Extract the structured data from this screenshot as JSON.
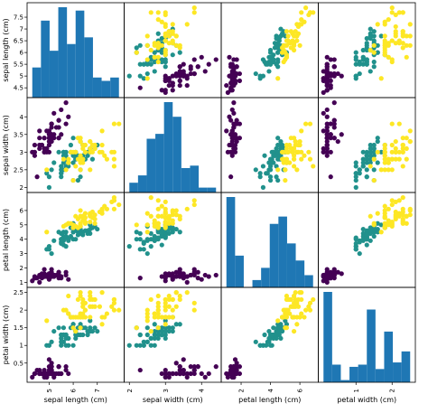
{
  "chart_data": {
    "type": "scatter-matrix",
    "title": "",
    "variables": [
      "sepal length (cm)",
      "sepal width (cm)",
      "petal length (cm)",
      "petal width (cm)"
    ],
    "ranges": [
      [
        4.3,
        7.9
      ],
      [
        2.0,
        4.4
      ],
      [
        1.0,
        6.9
      ],
      [
        0.1,
        2.5
      ]
    ],
    "x_ticks": [
      [
        5,
        6,
        7
      ],
      [
        2,
        3,
        4
      ],
      [
        2,
        4,
        6
      ],
      [
        1,
        2
      ]
    ],
    "y_ticks": [
      [
        4.5,
        5.0,
        5.5,
        6.0,
        6.5,
        7.0,
        7.5
      ],
      [
        2.0,
        2.5,
        3.0,
        3.5,
        4.0
      ],
      [
        1,
        2,
        3,
        4,
        5,
        6
      ],
      [
        0.5,
        1.0,
        1.5,
        2.0,
        2.5
      ]
    ],
    "class_colors": [
      "#440154",
      "#21918c",
      "#fde725"
    ],
    "histogram_color": "#1f77b4",
    "histograms": [
      {
        "bins": 10,
        "counts": [
          9,
          23,
          14,
          27,
          16,
          26,
          18,
          6,
          5,
          6
        ]
      },
      {
        "bins": 10,
        "counts": [
          4,
          7,
          22,
          24,
          37,
          31,
          10,
          11,
          2,
          2
        ]
      },
      {
        "bins": 10,
        "counts": [
          37,
          13,
          0,
          3,
          8,
          26,
          29,
          18,
          11,
          5
        ]
      },
      {
        "bins": 10,
        "counts": [
          41,
          8,
          1,
          7,
          8,
          33,
          6,
          23,
          9,
          14
        ]
      }
    ],
    "points": [
      [
        5.1,
        3.5,
        1.4,
        0.2,
        0
      ],
      [
        4.9,
        3.0,
        1.4,
        0.2,
        0
      ],
      [
        4.7,
        3.2,
        1.3,
        0.2,
        0
      ],
      [
        4.6,
        3.1,
        1.5,
        0.2,
        0
      ],
      [
        5.0,
        3.6,
        1.4,
        0.2,
        0
      ],
      [
        5.4,
        3.9,
        1.7,
        0.4,
        0
      ],
      [
        4.6,
        3.4,
        1.4,
        0.3,
        0
      ],
      [
        5.0,
        3.4,
        1.5,
        0.2,
        0
      ],
      [
        4.4,
        2.9,
        1.4,
        0.2,
        0
      ],
      [
        4.9,
        3.1,
        1.5,
        0.1,
        0
      ],
      [
        5.4,
        3.7,
        1.5,
        0.2,
        0
      ],
      [
        4.8,
        3.4,
        1.6,
        0.2,
        0
      ],
      [
        4.8,
        3.0,
        1.4,
        0.1,
        0
      ],
      [
        4.3,
        3.0,
        1.1,
        0.1,
        0
      ],
      [
        5.8,
        4.0,
        1.2,
        0.2,
        0
      ],
      [
        5.7,
        4.4,
        1.5,
        0.4,
        0
      ],
      [
        5.4,
        3.9,
        1.3,
        0.4,
        0
      ],
      [
        5.1,
        3.5,
        1.4,
        0.3,
        0
      ],
      [
        5.7,
        3.8,
        1.7,
        0.3,
        0
      ],
      [
        5.1,
        3.8,
        1.5,
        0.3,
        0
      ],
      [
        5.4,
        3.4,
        1.7,
        0.2,
        0
      ],
      [
        5.1,
        3.7,
        1.5,
        0.4,
        0
      ],
      [
        4.6,
        3.6,
        1.0,
        0.2,
        0
      ],
      [
        5.1,
        3.3,
        1.7,
        0.5,
        0
      ],
      [
        4.8,
        3.4,
        1.9,
        0.2,
        0
      ],
      [
        5.0,
        3.0,
        1.6,
        0.2,
        0
      ],
      [
        5.0,
        3.4,
        1.6,
        0.4,
        0
      ],
      [
        5.2,
        3.5,
        1.5,
        0.2,
        0
      ],
      [
        5.2,
        3.4,
        1.4,
        0.2,
        0
      ],
      [
        4.7,
        3.2,
        1.6,
        0.2,
        0
      ],
      [
        4.8,
        3.1,
        1.6,
        0.2,
        0
      ],
      [
        5.4,
        3.4,
        1.5,
        0.4,
        0
      ],
      [
        5.2,
        4.1,
        1.5,
        0.1,
        0
      ],
      [
        5.5,
        4.2,
        1.4,
        0.2,
        0
      ],
      [
        4.9,
        3.1,
        1.5,
        0.2,
        0
      ],
      [
        5.0,
        3.2,
        1.2,
        0.2,
        0
      ],
      [
        5.5,
        3.5,
        1.3,
        0.2,
        0
      ],
      [
        4.9,
        3.6,
        1.4,
        0.1,
        0
      ],
      [
        4.4,
        3.0,
        1.3,
        0.2,
        0
      ],
      [
        5.1,
        3.4,
        1.5,
        0.2,
        0
      ],
      [
        5.0,
        3.5,
        1.3,
        0.3,
        0
      ],
      [
        4.5,
        2.3,
        1.3,
        0.3,
        0
      ],
      [
        4.4,
        3.2,
        1.3,
        0.2,
        0
      ],
      [
        5.0,
        3.5,
        1.6,
        0.6,
        0
      ],
      [
        5.1,
        3.8,
        1.9,
        0.4,
        0
      ],
      [
        4.8,
        3.0,
        1.4,
        0.3,
        0
      ],
      [
        5.1,
        3.8,
        1.6,
        0.2,
        0
      ],
      [
        4.6,
        3.2,
        1.4,
        0.2,
        0
      ],
      [
        5.3,
        3.7,
        1.5,
        0.2,
        0
      ],
      [
        5.0,
        3.3,
        1.4,
        0.2,
        0
      ],
      [
        7.0,
        3.2,
        4.7,
        1.4,
        1
      ],
      [
        6.4,
        3.2,
        4.5,
        1.5,
        1
      ],
      [
        6.9,
        3.1,
        4.9,
        1.5,
        1
      ],
      [
        5.5,
        2.3,
        4.0,
        1.3,
        1
      ],
      [
        6.5,
        2.8,
        4.6,
        1.5,
        1
      ],
      [
        5.7,
        2.8,
        4.5,
        1.3,
        1
      ],
      [
        6.3,
        3.3,
        4.7,
        1.6,
        1
      ],
      [
        4.9,
        2.4,
        3.3,
        1.0,
        1
      ],
      [
        6.6,
        2.9,
        4.6,
        1.3,
        1
      ],
      [
        5.2,
        2.7,
        3.9,
        1.4,
        1
      ],
      [
        5.0,
        2.0,
        3.5,
        1.0,
        1
      ],
      [
        5.9,
        3.0,
        4.2,
        1.5,
        1
      ],
      [
        6.0,
        2.2,
        4.0,
        1.0,
        1
      ],
      [
        6.1,
        2.9,
        4.7,
        1.4,
        1
      ],
      [
        5.6,
        2.9,
        3.6,
        1.3,
        1
      ],
      [
        6.7,
        3.1,
        4.4,
        1.4,
        1
      ],
      [
        5.6,
        3.0,
        4.5,
        1.5,
        1
      ],
      [
        5.8,
        2.7,
        4.1,
        1.0,
        1
      ],
      [
        6.2,
        2.2,
        4.5,
        1.5,
        1
      ],
      [
        5.6,
        2.5,
        3.9,
        1.1,
        1
      ],
      [
        5.9,
        3.2,
        4.8,
        1.8,
        1
      ],
      [
        6.1,
        2.8,
        4.0,
        1.3,
        1
      ],
      [
        6.3,
        2.5,
        4.9,
        1.5,
        1
      ],
      [
        6.1,
        2.8,
        4.7,
        1.2,
        1
      ],
      [
        6.4,
        2.9,
        4.3,
        1.3,
        1
      ],
      [
        6.6,
        3.0,
        4.4,
        1.4,
        1
      ],
      [
        6.8,
        2.8,
        4.8,
        1.4,
        1
      ],
      [
        6.7,
        3.0,
        5.0,
        1.7,
        1
      ],
      [
        6.0,
        2.9,
        4.5,
        1.5,
        1
      ],
      [
        5.7,
        2.6,
        3.5,
        1.0,
        1
      ],
      [
        5.5,
        2.4,
        3.8,
        1.1,
        1
      ],
      [
        5.5,
        2.4,
        3.7,
        1.0,
        1
      ],
      [
        5.8,
        2.7,
        3.9,
        1.2,
        1
      ],
      [
        6.0,
        2.7,
        5.1,
        1.6,
        1
      ],
      [
        5.4,
        3.0,
        4.5,
        1.5,
        1
      ],
      [
        6.0,
        3.4,
        4.5,
        1.6,
        1
      ],
      [
        6.7,
        3.1,
        4.7,
        1.5,
        1
      ],
      [
        6.3,
        2.3,
        4.4,
        1.3,
        1
      ],
      [
        5.6,
        3.0,
        4.1,
        1.3,
        1
      ],
      [
        5.5,
        2.5,
        4.0,
        1.3,
        1
      ],
      [
        5.5,
        2.6,
        4.4,
        1.2,
        1
      ],
      [
        6.1,
        3.0,
        4.6,
        1.4,
        1
      ],
      [
        5.8,
        2.6,
        4.0,
        1.2,
        1
      ],
      [
        5.0,
        2.3,
        3.3,
        1.0,
        1
      ],
      [
        5.6,
        2.7,
        4.2,
        1.3,
        1
      ],
      [
        5.7,
        3.0,
        4.2,
        1.2,
        1
      ],
      [
        5.7,
        2.9,
        4.2,
        1.3,
        1
      ],
      [
        6.2,
        2.9,
        4.3,
        1.3,
        1
      ],
      [
        5.1,
        2.5,
        3.0,
        1.1,
        1
      ],
      [
        5.7,
        2.8,
        4.1,
        1.3,
        1
      ],
      [
        6.3,
        3.3,
        6.0,
        2.5,
        2
      ],
      [
        5.8,
        2.7,
        5.1,
        1.9,
        2
      ],
      [
        7.1,
        3.0,
        5.9,
        2.1,
        2
      ],
      [
        6.3,
        2.9,
        5.6,
        1.8,
        2
      ],
      [
        6.5,
        3.0,
        5.8,
        2.2,
        2
      ],
      [
        7.6,
        3.0,
        6.6,
        2.1,
        2
      ],
      [
        4.9,
        2.5,
        4.5,
        1.7,
        2
      ],
      [
        7.3,
        2.9,
        6.3,
        1.8,
        2
      ],
      [
        6.7,
        2.5,
        5.8,
        1.8,
        2
      ],
      [
        7.2,
        3.6,
        6.1,
        2.5,
        2
      ],
      [
        6.5,
        3.2,
        5.1,
        2.0,
        2
      ],
      [
        6.4,
        2.7,
        5.3,
        1.9,
        2
      ],
      [
        6.8,
        3.0,
        5.5,
        2.1,
        2
      ],
      [
        5.7,
        2.5,
        5.0,
        2.0,
        2
      ],
      [
        5.8,
        2.8,
        5.1,
        2.4,
        2
      ],
      [
        6.4,
        3.2,
        5.3,
        2.3,
        2
      ],
      [
        6.5,
        3.0,
        5.5,
        1.8,
        2
      ],
      [
        7.7,
        3.8,
        6.7,
        2.2,
        2
      ],
      [
        7.7,
        2.6,
        6.9,
        2.3,
        2
      ],
      [
        6.0,
        2.2,
        5.0,
        1.5,
        2
      ],
      [
        6.9,
        3.2,
        5.7,
        2.3,
        2
      ],
      [
        5.6,
        2.8,
        4.9,
        2.0,
        2
      ],
      [
        7.7,
        2.8,
        6.7,
        2.0,
        2
      ],
      [
        6.3,
        2.7,
        4.9,
        1.8,
        2
      ],
      [
        6.7,
        3.3,
        5.7,
        2.1,
        2
      ],
      [
        7.2,
        3.2,
        6.0,
        1.8,
        2
      ],
      [
        6.2,
        2.8,
        4.8,
        1.8,
        2
      ],
      [
        6.1,
        3.0,
        4.9,
        1.8,
        2
      ],
      [
        6.4,
        2.8,
        5.6,
        2.1,
        2
      ],
      [
        7.2,
        3.0,
        5.8,
        1.6,
        2
      ],
      [
        7.4,
        2.8,
        6.1,
        1.9,
        2
      ],
      [
        7.9,
        3.8,
        6.4,
        2.0,
        2
      ],
      [
        6.4,
        2.8,
        5.6,
        2.2,
        2
      ],
      [
        6.3,
        2.8,
        5.1,
        1.5,
        2
      ],
      [
        6.1,
        2.6,
        5.6,
        1.4,
        2
      ],
      [
        7.7,
        3.0,
        6.1,
        2.3,
        2
      ],
      [
        6.3,
        3.4,
        5.6,
        2.4,
        2
      ],
      [
        6.4,
        3.1,
        5.5,
        1.8,
        2
      ],
      [
        6.0,
        3.0,
        4.8,
        1.8,
        2
      ],
      [
        6.9,
        3.1,
        5.4,
        2.1,
        2
      ],
      [
        6.7,
        3.1,
        5.6,
        2.4,
        2
      ],
      [
        6.9,
        3.1,
        5.1,
        2.3,
        2
      ],
      [
        5.8,
        2.7,
        5.1,
        1.9,
        2
      ],
      [
        6.8,
        3.2,
        5.9,
        2.3,
        2
      ],
      [
        6.7,
        3.3,
        5.7,
        2.5,
        2
      ],
      [
        6.7,
        3.0,
        5.2,
        2.3,
        2
      ],
      [
        6.3,
        2.5,
        5.0,
        1.9,
        2
      ],
      [
        6.5,
        3.0,
        5.2,
        2.0,
        2
      ],
      [
        6.2,
        3.4,
        5.4,
        2.3,
        2
      ],
      [
        5.9,
        3.0,
        5.1,
        1.8,
        2
      ]
    ]
  }
}
